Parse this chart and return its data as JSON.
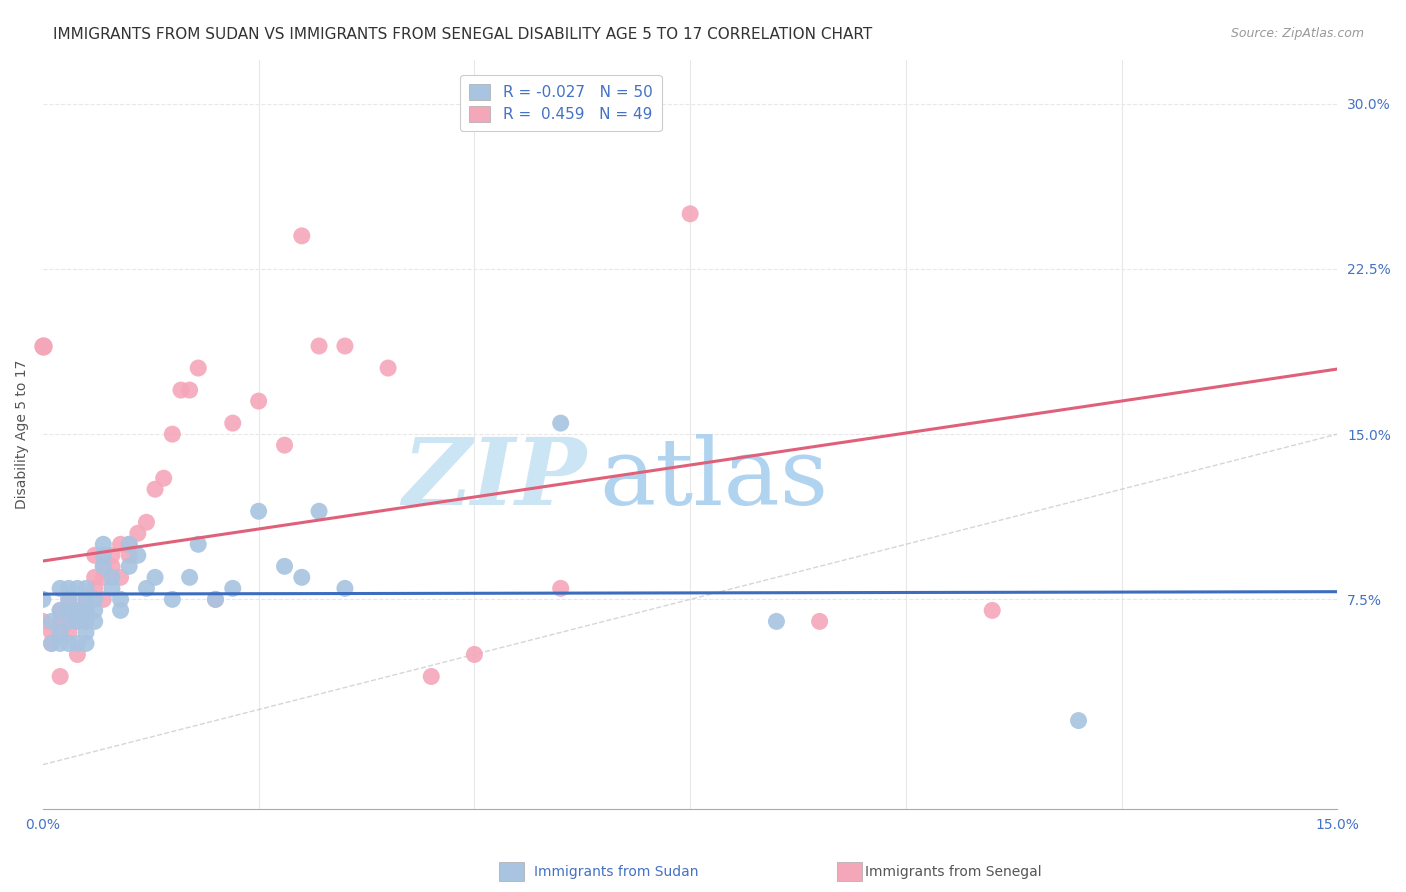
{
  "title": "IMMIGRANTS FROM SUDAN VS IMMIGRANTS FROM SENEGAL DISABILITY AGE 5 TO 17 CORRELATION CHART",
  "source": "Source: ZipAtlas.com",
  "ylabel": "Disability Age 5 to 17",
  "xlim": [
    0.0,
    0.15
  ],
  "ylim": [
    -0.02,
    0.32
  ],
  "sudan_color": "#a8c4e0",
  "senegal_color": "#f4a7b9",
  "sudan_line_color": "#3c6dbf",
  "senegal_line_color": "#e0607a",
  "diagonal_color": "#cccccc",
  "legend_sudan_r": -0.027,
  "legend_sudan_n": 50,
  "legend_senegal_r": 0.459,
  "legend_senegal_n": 49,
  "sudan_x": [
    0.0,
    0.001,
    0.001,
    0.002,
    0.002,
    0.002,
    0.002,
    0.003,
    0.003,
    0.003,
    0.003,
    0.003,
    0.004,
    0.004,
    0.004,
    0.004,
    0.005,
    0.005,
    0.005,
    0.005,
    0.005,
    0.005,
    0.006,
    0.006,
    0.006,
    0.007,
    0.007,
    0.007,
    0.008,
    0.008,
    0.009,
    0.009,
    0.01,
    0.01,
    0.011,
    0.012,
    0.013,
    0.015,
    0.017,
    0.018,
    0.02,
    0.022,
    0.025,
    0.028,
    0.03,
    0.032,
    0.035,
    0.06,
    0.085,
    0.12
  ],
  "sudan_y": [
    0.075,
    0.065,
    0.055,
    0.07,
    0.06,
    0.08,
    0.055,
    0.065,
    0.07,
    0.075,
    0.055,
    0.08,
    0.065,
    0.07,
    0.08,
    0.055,
    0.06,
    0.07,
    0.075,
    0.065,
    0.08,
    0.055,
    0.07,
    0.065,
    0.075,
    0.09,
    0.095,
    0.1,
    0.08,
    0.085,
    0.07,
    0.075,
    0.09,
    0.1,
    0.095,
    0.08,
    0.085,
    0.075,
    0.085,
    0.1,
    0.075,
    0.08,
    0.115,
    0.09,
    0.085,
    0.115,
    0.08,
    0.155,
    0.065,
    0.02
  ],
  "senegal_x": [
    0.0,
    0.001,
    0.001,
    0.002,
    0.002,
    0.002,
    0.003,
    0.003,
    0.003,
    0.004,
    0.004,
    0.004,
    0.005,
    0.005,
    0.005,
    0.006,
    0.006,
    0.006,
    0.007,
    0.007,
    0.007,
    0.008,
    0.008,
    0.009,
    0.009,
    0.01,
    0.01,
    0.011,
    0.012,
    0.013,
    0.014,
    0.015,
    0.016,
    0.017,
    0.018,
    0.02,
    0.022,
    0.025,
    0.028,
    0.03,
    0.032,
    0.035,
    0.04,
    0.045,
    0.05,
    0.06,
    0.075,
    0.09,
    0.11
  ],
  "senegal_y": [
    0.065,
    0.06,
    0.055,
    0.07,
    0.065,
    0.04,
    0.075,
    0.065,
    0.06,
    0.07,
    0.065,
    0.05,
    0.075,
    0.07,
    0.065,
    0.08,
    0.085,
    0.095,
    0.09,
    0.085,
    0.075,
    0.09,
    0.095,
    0.085,
    0.1,
    0.095,
    0.1,
    0.105,
    0.11,
    0.125,
    0.13,
    0.15,
    0.17,
    0.17,
    0.18,
    0.075,
    0.155,
    0.165,
    0.145,
    0.24,
    0.19,
    0.19,
    0.18,
    0.04,
    0.05,
    0.08,
    0.25,
    0.065,
    0.07
  ],
  "background_color": "#ffffff",
  "grid_color": "#e8e8e8",
  "watermark_zip": "ZIP",
  "watermark_atlas": "atlas",
  "watermark_color_zip": "#cce5f5",
  "watermark_color_atlas": "#b0d4f0",
  "ytick_positions": [
    0.075,
    0.15,
    0.225,
    0.3
  ],
  "ytick_labels": [
    "7.5%",
    "15.0%",
    "22.5%",
    "30.0%"
  ],
  "xtick_positions": [
    0.0,
    0.025,
    0.05,
    0.075,
    0.1,
    0.125,
    0.15
  ],
  "legend_bottom_sudan": "Immigrants from Sudan",
  "legend_bottom_senegal": "Immigrants from Senegal",
  "title_fontsize": 11,
  "tick_fontsize": 10,
  "legend_fontsize": 11
}
